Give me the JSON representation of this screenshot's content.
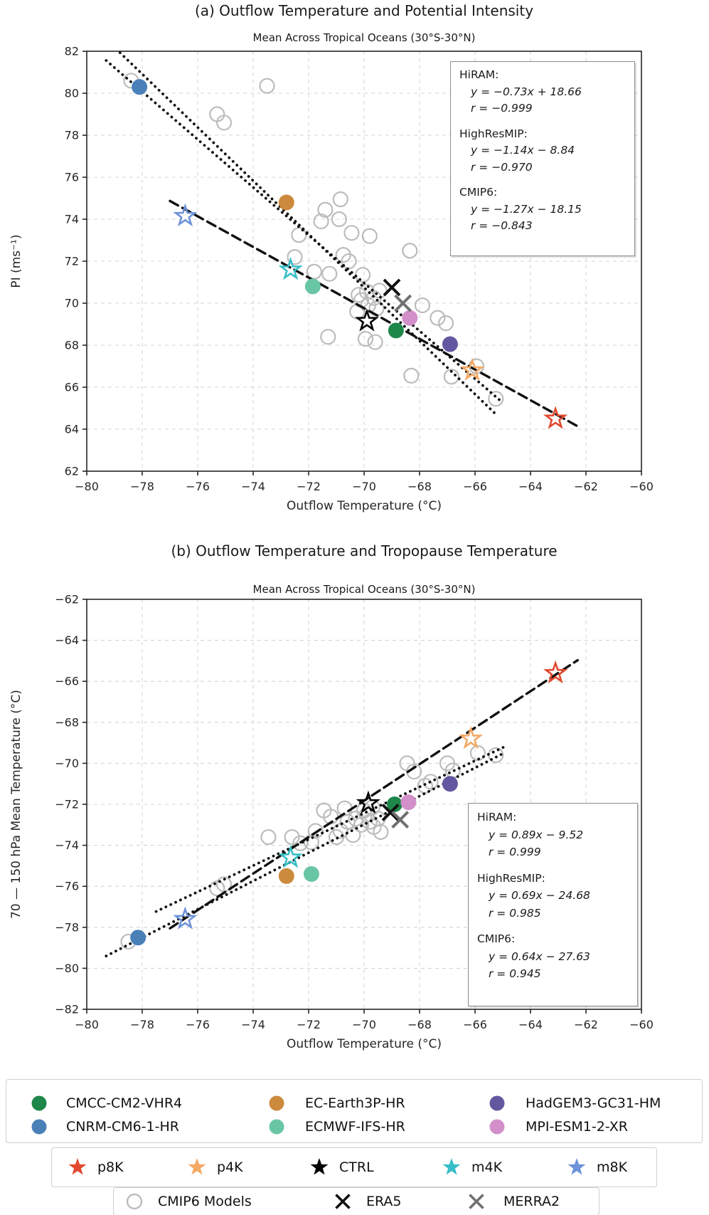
{
  "figure": {
    "background": "#ffffff"
  },
  "colors": {
    "axis": "#262626",
    "grid": "#d4d4d4",
    "fit_line": "#111111",
    "cmip6_gray": "#bcbcbc",
    "era5": "#111111",
    "merra2": "#707070"
  },
  "chart_data": [
    {
      "id": "a",
      "type": "scatter",
      "title": "(a) Outflow Temperature and Potential Intensity",
      "subtitle": "Mean Across Tropical Oceans (30°S-30°N)",
      "xlabel": "Outflow Temperature (°C)",
      "ylabel": "PI (ms⁻¹)",
      "xlim": [
        -80,
        -60
      ],
      "ylim": [
        62,
        82
      ],
      "xticks": [
        -80,
        -78,
        -76,
        -74,
        -72,
        -70,
        -68,
        -66,
        -64,
        -62,
        -60
      ],
      "yticks": [
        62,
        64,
        66,
        68,
        70,
        72,
        74,
        76,
        78,
        80,
        82
      ],
      "grid": true,
      "series": [
        {
          "name": "CMIP6 Models",
          "marker": "open-circle",
          "color": "#bcbcbc",
          "layer": "back",
          "points": [
            [
              -78.4,
              80.6
            ],
            [
              -73.5,
              80.35
            ],
            [
              -75.3,
              79.0
            ],
            [
              -75.05,
              78.6
            ],
            [
              -70.85,
              74.95
            ],
            [
              -71.4,
              74.45
            ],
            [
              -70.9,
              74.0
            ],
            [
              -72.35,
              73.25
            ],
            [
              -71.55,
              73.9
            ],
            [
              -70.45,
              73.35
            ],
            [
              -69.8,
              73.2
            ],
            [
              -68.35,
              72.5
            ],
            [
              -72.5,
              72.2
            ],
            [
              -70.75,
              72.3
            ],
            [
              -70.55,
              72.0
            ],
            [
              -71.8,
              71.5
            ],
            [
              -71.25,
              71.4
            ],
            [
              -70.05,
              71.35
            ],
            [
              -69.45,
              70.6
            ],
            [
              -70.2,
              70.4
            ],
            [
              -69.9,
              70.55
            ],
            [
              -69.65,
              70.25
            ],
            [
              -70.1,
              70.15
            ],
            [
              -69.85,
              69.9
            ],
            [
              -69.55,
              69.75
            ],
            [
              -70.25,
              69.6
            ],
            [
              -67.9,
              69.9
            ],
            [
              -67.35,
              69.3
            ],
            [
              -67.05,
              69.05
            ],
            [
              -71.3,
              68.4
            ],
            [
              -69.95,
              68.3
            ],
            [
              -69.6,
              68.15
            ],
            [
              -68.3,
              66.55
            ],
            [
              -66.85,
              66.5
            ],
            [
              -65.95,
              67.0
            ],
            [
              -65.25,
              65.45
            ]
          ]
        },
        {
          "name": "CMCC-CM2-VHR4",
          "marker": "circle",
          "color": "#1d8649",
          "points": [
            [
              -68.85,
              68.7
            ]
          ]
        },
        {
          "name": "CNRM-CM6-1-HR",
          "marker": "circle",
          "color": "#4a80b8",
          "points": [
            [
              -78.1,
              80.3
            ]
          ]
        },
        {
          "name": "EC-Earth3P-HR",
          "marker": "circle",
          "color": "#cc8a3d",
          "points": [
            [
              -72.8,
              74.8
            ]
          ]
        },
        {
          "name": "ECMWF-IFS-HR",
          "marker": "circle",
          "color": "#69c6a4",
          "points": [
            [
              -71.85,
              70.8
            ]
          ]
        },
        {
          "name": "HadGEM3-GC31-HM",
          "marker": "circle",
          "color": "#63589f",
          "points": [
            [
              -66.9,
              68.05
            ]
          ]
        },
        {
          "name": "MPI-ESM1-2-XR",
          "marker": "circle",
          "color": "#d28fc9",
          "points": [
            [
              -68.35,
              69.3
            ]
          ]
        },
        {
          "name": "ERA5",
          "marker": "x",
          "color": "#111111",
          "points": [
            [
              -69.0,
              70.75
            ]
          ]
        },
        {
          "name": "MERRA2",
          "marker": "x",
          "color": "#707070",
          "points": [
            [
              -68.6,
              70.0
            ]
          ]
        },
        {
          "name": "p8K",
          "marker": "star-open",
          "color": "#e2492f",
          "points": [
            [
              -63.1,
              64.5
            ]
          ]
        },
        {
          "name": "p4K",
          "marker": "star-open",
          "color": "#f4a965",
          "points": [
            [
              -66.1,
              66.8
            ]
          ]
        },
        {
          "name": "CTRL",
          "marker": "star-open",
          "color": "#000000",
          "points": [
            [
              -69.9,
              69.15
            ]
          ]
        },
        {
          "name": "m4K",
          "marker": "star-open",
          "color": "#37bec6",
          "points": [
            [
              -72.65,
              71.6
            ]
          ]
        },
        {
          "name": "m8K",
          "marker": "star-open",
          "color": "#6d93d9",
          "points": [
            [
              -76.45,
              74.15
            ]
          ]
        }
      ],
      "fit_lines": [
        {
          "name": "HiRAM",
          "style": "dashed",
          "x1": -77.0,
          "y1": 74.87,
          "x2": -62.3,
          "y2": 64.14
        },
        {
          "name": "HighResMIP",
          "style": "dotted",
          "x1": -79.3,
          "y1": 81.56,
          "x2": -65.0,
          "y2": 65.26
        },
        {
          "name": "CMIP6",
          "style": "dotted",
          "x1": -78.8,
          "y1": 81.93,
          "x2": -65.2,
          "y2": 64.65
        }
      ],
      "annotation": {
        "lines": [
          "HiRAM:",
          "y = −0.73x + 18.66",
          "r = −0.999",
          "",
          "HighResMIP:",
          "y = −1.14x − 8.84",
          "r = −0.970",
          "",
          "CMIP6:",
          "y = −1.27x − 18.15",
          "r = −0.843"
        ]
      }
    },
    {
      "id": "b",
      "type": "scatter",
      "title": "(b) Outflow Temperature and Tropopause Temperature",
      "subtitle": "Mean Across Tropical Oceans (30°S-30°N)",
      "xlabel": "Outflow Temperature (°C)",
      "ylabel": "70 — 150 hPa Mean Temperature (°C)",
      "xlim": [
        -80,
        -60
      ],
      "ylim": [
        -82,
        -62
      ],
      "xticks": [
        -80,
        -78,
        -76,
        -74,
        -72,
        -70,
        -68,
        -66,
        -64,
        -62,
        -60
      ],
      "yticks": [
        -82,
        -80,
        -78,
        -76,
        -74,
        -72,
        -70,
        -68,
        -66,
        -64,
        -62
      ],
      "grid": true,
      "series": [
        {
          "name": "CMIP6 Models",
          "marker": "open-circle",
          "color": "#bcbcbc",
          "layer": "back",
          "points": [
            [
              -78.5,
              -78.7
            ],
            [
              -75.3,
              -76.1
            ],
            [
              -75.05,
              -75.9
            ],
            [
              -73.45,
              -73.6
            ],
            [
              -72.6,
              -73.6
            ],
            [
              -72.3,
              -73.9
            ],
            [
              -71.75,
              -73.3
            ],
            [
              -71.2,
              -72.6
            ],
            [
              -71.45,
              -72.3
            ],
            [
              -71.0,
              -73.6
            ],
            [
              -70.85,
              -73.3
            ],
            [
              -70.6,
              -72.85
            ],
            [
              -70.3,
              -72.7
            ],
            [
              -70.1,
              -73.0
            ],
            [
              -69.9,
              -72.5
            ],
            [
              -69.8,
              -72.85
            ],
            [
              -69.65,
              -73.1
            ],
            [
              -69.5,
              -72.7
            ],
            [
              -69.4,
              -73.35
            ],
            [
              -70.0,
              -72.3
            ],
            [
              -69.7,
              -72.15
            ],
            [
              -70.4,
              -73.5
            ],
            [
              -68.45,
              -70.0
            ],
            [
              -68.2,
              -70.4
            ],
            [
              -67.8,
              -71.1
            ],
            [
              -67.6,
              -70.9
            ],
            [
              -67.0,
              -70.0
            ],
            [
              -66.8,
              -70.35
            ],
            [
              -65.9,
              -69.5
            ],
            [
              -65.25,
              -69.6
            ],
            [
              -71.9,
              -73.85
            ],
            [
              -70.7,
              -72.2
            ]
          ]
        },
        {
          "name": "CMCC-CM2-VHR4",
          "marker": "circle",
          "color": "#1d8649",
          "points": [
            [
              -68.9,
              -72.0
            ]
          ]
        },
        {
          "name": "CNRM-CM6-1-HR",
          "marker": "circle",
          "color": "#4a80b8",
          "points": [
            [
              -78.15,
              -78.5
            ]
          ]
        },
        {
          "name": "EC-Earth3P-HR",
          "marker": "circle",
          "color": "#cc8a3d",
          "points": [
            [
              -72.8,
              -75.5
            ]
          ]
        },
        {
          "name": "ECMWF-IFS-HR",
          "marker": "circle",
          "color": "#69c6a4",
          "points": [
            [
              -71.9,
              -75.4
            ]
          ]
        },
        {
          "name": "HadGEM3-GC31-HM",
          "marker": "circle",
          "color": "#63589f",
          "points": [
            [
              -66.9,
              -71.0
            ]
          ]
        },
        {
          "name": "MPI-ESM1-2-XR",
          "marker": "circle",
          "color": "#d28fc9",
          "points": [
            [
              -68.4,
              -71.9
            ]
          ]
        },
        {
          "name": "ERA5",
          "marker": "x",
          "color": "#111111",
          "points": [
            [
              -69.05,
              -72.4
            ]
          ]
        },
        {
          "name": "MERRA2",
          "marker": "x",
          "color": "#707070",
          "points": [
            [
              -68.7,
              -72.75
            ]
          ]
        },
        {
          "name": "p8K",
          "marker": "star-open",
          "color": "#e2492f",
          "points": [
            [
              -63.1,
              -65.6
            ]
          ]
        },
        {
          "name": "p4K",
          "marker": "star-open",
          "color": "#f4a965",
          "points": [
            [
              -66.15,
              -68.8
            ]
          ]
        },
        {
          "name": "CTRL",
          "marker": "star-open",
          "color": "#000000",
          "points": [
            [
              -69.85,
              -71.95
            ]
          ]
        },
        {
          "name": "m4K",
          "marker": "star-open",
          "color": "#37bec6",
          "points": [
            [
              -72.65,
              -74.6
            ]
          ]
        },
        {
          "name": "m8K",
          "marker": "star-open",
          "color": "#6d93d9",
          "points": [
            [
              -76.45,
              -77.6
            ]
          ]
        }
      ],
      "fit_lines": [
        {
          "name": "HiRAM",
          "style": "dashed",
          "x1": -77.0,
          "y1": -78.05,
          "x2": -62.3,
          "y2": -64.97
        },
        {
          "name": "HighResMIP",
          "style": "dotted",
          "x1": -79.3,
          "y1": -79.4,
          "x2": -65.0,
          "y2": -69.53
        },
        {
          "name": "CMIP6",
          "style": "dotted",
          "x1": -77.5,
          "y1": -77.23,
          "x2": -64.9,
          "y2": -69.17
        }
      ],
      "annotation": {
        "lines": [
          "HiRAM:",
          "y = 0.89x − 9.52",
          "r = 0.999",
          "",
          "HighResMIP:",
          "y = 0.69x − 24.68",
          "r = 0.985",
          "",
          "CMIP6:",
          "y = 0.64x − 27.63",
          "r = 0.945"
        ]
      }
    }
  ],
  "legend": {
    "models_rows": [
      [
        {
          "label": "CMCC-CM2-VHR4",
          "color": "#1d8649"
        },
        {
          "label": "EC-Earth3P-HR",
          "color": "#cc8a3d"
        },
        {
          "label": "HadGEM3-GC31-HM",
          "color": "#63589f"
        }
      ],
      [
        {
          "label": "CNRM-CM6-1-HR",
          "color": "#4a80b8"
        },
        {
          "label": "ECMWF-IFS-HR",
          "color": "#69c6a4"
        },
        {
          "label": "MPI-ESM1-2-XR",
          "color": "#d28fc9"
        }
      ]
    ],
    "experiments": [
      {
        "label": "p8K",
        "color": "#e2492f"
      },
      {
        "label": "p4K",
        "color": "#f4a965"
      },
      {
        "label": "CTRL",
        "color": "#000000"
      },
      {
        "label": "m4K",
        "color": "#37bec6"
      },
      {
        "label": "m8K",
        "color": "#6d93d9"
      }
    ],
    "references": [
      {
        "label": "CMIP6 Models",
        "marker": "open-circle",
        "color": "#bcbcbc"
      },
      {
        "label": "ERA5",
        "marker": "x",
        "color": "#111111"
      },
      {
        "label": "MERRA2",
        "marker": "x",
        "color": "#707070"
      }
    ]
  }
}
